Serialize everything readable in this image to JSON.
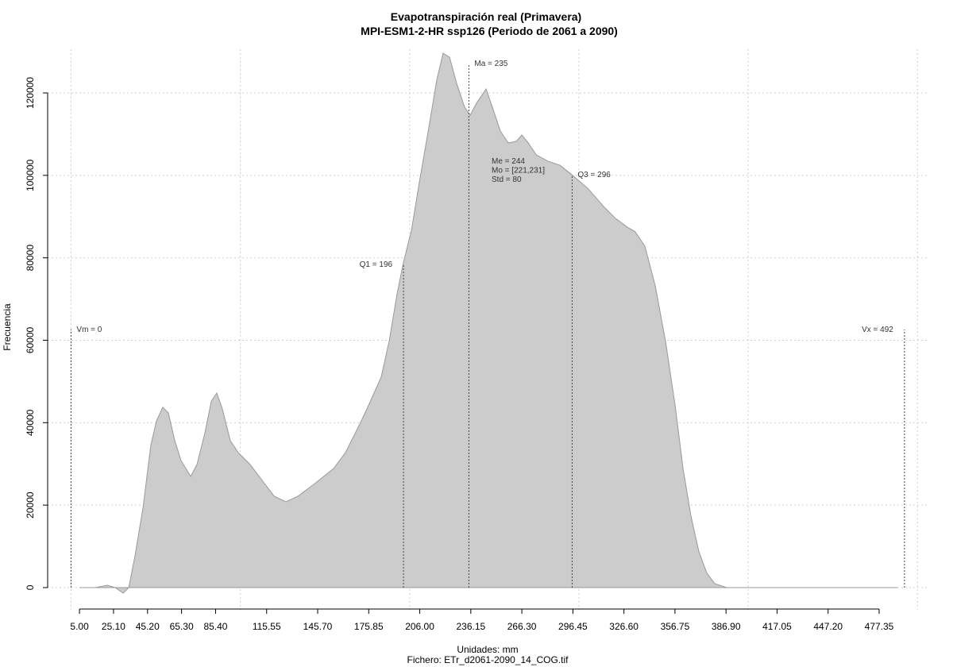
{
  "chart_data": {
    "type": "area",
    "title": "Evapotranspiración real (Primavera)",
    "subtitle": "MPI-ESM1-2-HR ssp126 (Periodo de 2061 a 2090)",
    "xlabel": "Unidades: mm",
    "caption": "Fichero: ETr_d2061-2090_14_COG.tif",
    "ylabel": "Frecuencia",
    "color": "#cccccc",
    "line_color": "#999999",
    "x": [
      5,
      14.4,
      21.4,
      26.1,
      30.8,
      34.1,
      37.8,
      42.5,
      47.2,
      50.5,
      54.2,
      57.5,
      61.3,
      65,
      70.7,
      74.4,
      79.1,
      82.9,
      86.1,
      89.4,
      94.1,
      98.8,
      105.8,
      112.9,
      120,
      127,
      134,
      143.4,
      155.1,
      162.1,
      169.2,
      174.8,
      183.2,
      187.9,
      192.6,
      196.4,
      201.1,
      205.7,
      211.4,
      216.1,
      219.8,
      223.6,
      227.8,
      232.5,
      235.8,
      239.5,
      245.2,
      248.9,
      253.6,
      258.3,
      263,
      266.3,
      270.1,
      274.8,
      281.8,
      288.8,
      295.8,
      305.2,
      314.6,
      321.6,
      328.6,
      333.3,
      339,
      345.1,
      351.2,
      356.8,
      361.5,
      366.2,
      370.9,
      375.6,
      380.2,
      387.3,
      488.1
    ],
    "values": [
      0,
      0,
      580,
      0,
      -1350,
      0,
      7700,
      19260,
      34670,
      40450,
      43720,
      42370,
      35630,
      30820,
      26960,
      29850,
      37560,
      45260,
      47190,
      43340,
      35630,
      32740,
      29850,
      26000,
      22150,
      20800,
      22150,
      25040,
      28890,
      32740,
      38520,
      43340,
      51040,
      59710,
      71260,
      78970,
      86670,
      98230,
      111710,
      123270,
      129620,
      128660,
      122300,
      116530,
      114600,
      117490,
      120950,
      116530,
      110750,
      107860,
      108240,
      109790,
      107860,
      104970,
      103430,
      102460,
      100150,
      96880,
      92450,
      89560,
      87440,
      86290,
      82820,
      73190,
      59710,
      44300,
      28890,
      17330,
      8670,
      3470,
      960,
      0,
      0
    ],
    "xlim": [
      -13.8,
      506.9
    ],
    "ylim": [
      -5400,
      130600
    ],
    "xticks": [
      {
        "value": 5,
        "label": "5.00"
      },
      {
        "value": 25.1,
        "label": "25.10"
      },
      {
        "value": 45.2,
        "label": "45.20"
      },
      {
        "value": 65.3,
        "label": "65.30"
      },
      {
        "value": 85.4,
        "label": "85.40"
      },
      {
        "value": 115.55,
        "label": "115.55"
      },
      {
        "value": 145.7,
        "label": "145.70"
      },
      {
        "value": 175.85,
        "label": "175.85"
      },
      {
        "value": 206,
        "label": "206.00"
      },
      {
        "value": 236.15,
        "label": "236.15"
      },
      {
        "value": 266.3,
        "label": "266.30"
      },
      {
        "value": 296.45,
        "label": "296.45"
      },
      {
        "value": 326.6,
        "label": "326.60"
      },
      {
        "value": 356.75,
        "label": "356.75"
      },
      {
        "value": 386.9,
        "label": "386.90"
      },
      {
        "value": 417.05,
        "label": "417.05"
      },
      {
        "value": 447.2,
        "label": "447.20"
      },
      {
        "value": 477.35,
        "label": "477.35"
      }
    ],
    "xgrid": [
      0,
      100,
      200,
      300,
      400,
      500
    ],
    "yticks": [
      0,
      20000,
      40000,
      60000,
      80000,
      100000,
      120000
    ],
    "grid": true,
    "reference_lines": [
      {
        "label": "Vm = 0",
        "value": 0,
        "top": 62600
      },
      {
        "label": "Q1 = 196",
        "value": 196.4,
        "top": 78400
      },
      {
        "label": "Ma = 235",
        "value": 235,
        "top": 127100
      },
      {
        "label": "Q3 = 296",
        "value": 296,
        "top": 100150
      },
      {
        "label": "Vx = 492",
        "value": 492.3,
        "top": 62600
      }
    ],
    "stats": [
      "Me = 244",
      "Mo = [221,231]",
      "Std = 80"
    ]
  }
}
